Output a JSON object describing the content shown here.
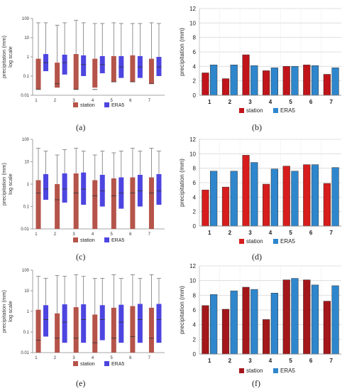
{
  "captions": [
    "(a)",
    "(b)",
    "(c)",
    "(d)",
    "(e)",
    "(f)"
  ],
  "colors": {
    "station": "#b5544a",
    "era5": "#4d45e0",
    "station_bar_f": "#a3161a",
    "station_bar_d": "#d61c1c",
    "station_bar_b": "#c0141a",
    "era5_bar": "#2e86cc",
    "grid": "#d8d8d8"
  },
  "chart_data": [
    {
      "id": "a",
      "type": "boxplot",
      "ylabel": "precipitation (mm)\nlog scale",
      "yscale": "log",
      "ylim": [
        0.01,
        100
      ],
      "ytick_labels": [
        "0.01",
        "0.1",
        "1",
        "10",
        "100"
      ],
      "yticks": [
        0.01,
        0.1,
        1,
        10,
        100
      ],
      "categories": [
        "1",
        "2",
        "3",
        "4",
        "5",
        "6",
        "7"
      ],
      "legend": [
        "station",
        "ERA5"
      ],
      "legend_position": "bottom",
      "series": [
        {
          "name": "station",
          "q1": [
            0.02,
            0.025,
            0.02,
            0.025,
            0.05,
            0.05,
            0.04
          ],
          "q3": [
            0.8,
            0.5,
            1.4,
            0.8,
            1.1,
            1.2,
            0.8
          ],
          "median": [
            0.02,
            0.04,
            0.02,
            0.02,
            0.05,
            0.05,
            0.04
          ],
          "max": [
            60,
            45,
            80,
            55,
            60,
            55,
            60
          ]
        },
        {
          "name": "ERA5",
          "q1": [
            0.18,
            0.12,
            0.1,
            0.14,
            0.08,
            0.08,
            0.1
          ],
          "q3": [
            1.4,
            1.3,
            1.2,
            1.1,
            1.1,
            1.1,
            1.0
          ],
          "median": [
            0.5,
            0.5,
            0.4,
            0.4,
            0.3,
            0.3,
            0.3
          ],
          "max": [
            60,
            60,
            60,
            55,
            55,
            55,
            55
          ]
        }
      ]
    },
    {
      "id": "b",
      "type": "bar",
      "ylabel": "precipitation (mm)",
      "ylim": [
        0,
        12
      ],
      "yticks": [
        0,
        2,
        4,
        6,
        8,
        10,
        12
      ],
      "categories": [
        "1",
        "2",
        "3",
        "4",
        "5",
        "6",
        "7"
      ],
      "legend": [
        "station",
        "ERA5"
      ],
      "legend_position": "bottom",
      "series": [
        {
          "name": "station",
          "values": [
            3.1,
            2.3,
            5.6,
            3.4,
            4.0,
            4.2,
            2.9
          ]
        },
        {
          "name": "ERA5",
          "values": [
            4.2,
            4.2,
            4.1,
            3.8,
            4.0,
            4.1,
            3.8
          ]
        }
      ]
    },
    {
      "id": "c",
      "type": "boxplot",
      "ylabel": "precipitation (mm)\nlog scale",
      "yscale": "log",
      "ylim": [
        0.01,
        100
      ],
      "ytick_labels": [
        "0.01",
        "0.1",
        "1",
        "10",
        "100"
      ],
      "yticks": [
        0.01,
        0.1,
        1,
        10,
        100
      ],
      "categories": [
        "1",
        "2",
        "3",
        "4",
        "5",
        "6",
        "7"
      ],
      "legend": [
        "station",
        "ERA5"
      ],
      "legend_position": "bottom",
      "series": [
        {
          "name": "station",
          "q1": [
            0.01,
            0.01,
            0.01,
            0.01,
            0.01,
            0.01,
            0.01
          ],
          "q3": [
            1.5,
            1.0,
            3.0,
            1.5,
            1.8,
            2.0,
            2.0
          ],
          "median": [
            0.4,
            0.2,
            0.4,
            0.3,
            0.3,
            0.4,
            0.4
          ],
          "max": [
            40,
            20,
            40,
            20,
            25,
            40,
            40
          ]
        },
        {
          "name": "ERA5",
          "q1": [
            0.2,
            0.15,
            0.12,
            0.1,
            0.08,
            0.1,
            0.12
          ],
          "q3": [
            2.8,
            3.0,
            3.3,
            2.6,
            2.0,
            2.6,
            2.8
          ],
          "median": [
            0.6,
            0.6,
            0.6,
            0.5,
            0.4,
            0.5,
            0.5
          ],
          "max": [
            30,
            35,
            30,
            30,
            30,
            30,
            30
          ]
        }
      ]
    },
    {
      "id": "d",
      "type": "bar",
      "ylabel": "precipitation (mm)",
      "ylim": [
        0,
        12
      ],
      "yticks": [
        0,
        2,
        4,
        6,
        8,
        10,
        12
      ],
      "categories": [
        "1",
        "2",
        "3",
        "4",
        "5",
        "6",
        "7"
      ],
      "legend": [
        "station",
        "ERA5"
      ],
      "legend_position": "bottom",
      "series": [
        {
          "name": "station",
          "values": [
            5.0,
            5.4,
            9.8,
            5.8,
            8.3,
            8.5,
            5.9
          ]
        },
        {
          "name": "ERA5",
          "values": [
            7.6,
            7.6,
            8.8,
            7.9,
            7.6,
            8.5,
            8.1
          ]
        }
      ]
    },
    {
      "id": "e",
      "type": "boxplot",
      "ylabel": "precipitation (mm)\nlog scale",
      "yscale": "log",
      "ylim": [
        0.01,
        100
      ],
      "ytick_labels": [
        "0.01",
        "0.1",
        "1",
        "10",
        "100"
      ],
      "yticks": [
        0.01,
        0.1,
        1,
        10,
        100
      ],
      "categories": [
        "1",
        "2",
        "3",
        "4",
        "5",
        "6",
        "7"
      ],
      "legend": [
        "station",
        "ERA5"
      ],
      "legend_position": "bottom",
      "series": [
        {
          "name": "station",
          "q1": [
            0.01,
            0.01,
            0.01,
            0.01,
            0.01,
            0.01,
            0.01
          ],
          "q3": [
            1.2,
            0.8,
            1.6,
            0.7,
            1.5,
            1.8,
            1.5
          ],
          "median": [
            0.04,
            0.05,
            0.05,
            0.03,
            0.05,
            0.06,
            0.05
          ],
          "max": [
            50,
            55,
            60,
            40,
            60,
            60,
            60
          ]
        },
        {
          "name": "ERA5",
          "q1": [
            0.06,
            0.03,
            0.03,
            0.04,
            0.03,
            0.03,
            0.03
          ],
          "q3": [
            2.0,
            2.2,
            2.2,
            2.0,
            2.1,
            2.3,
            2.3
          ],
          "median": [
            0.4,
            0.3,
            0.4,
            0.4,
            0.3,
            0.4,
            0.4
          ],
          "max": [
            40,
            50,
            50,
            40,
            40,
            40,
            40
          ]
        }
      ]
    },
    {
      "id": "f",
      "type": "bar",
      "ylabel": "precipitation (mm)",
      "ylim": [
        0,
        12
      ],
      "yticks": [
        0,
        2,
        4,
        6,
        8,
        10,
        12
      ],
      "categories": [
        "1",
        "2",
        "3",
        "4",
        "5",
        "6",
        "7"
      ],
      "legend": [
        "station",
        "ERA5"
      ],
      "legend_position": "bottom",
      "series": [
        {
          "name": "station",
          "values": [
            6.6,
            6.1,
            9.1,
            4.7,
            10.1,
            10.1,
            7.2
          ]
        },
        {
          "name": "ERA5",
          "values": [
            8.1,
            8.6,
            8.8,
            8.3,
            10.3,
            9.4,
            9.3
          ]
        }
      ]
    }
  ]
}
